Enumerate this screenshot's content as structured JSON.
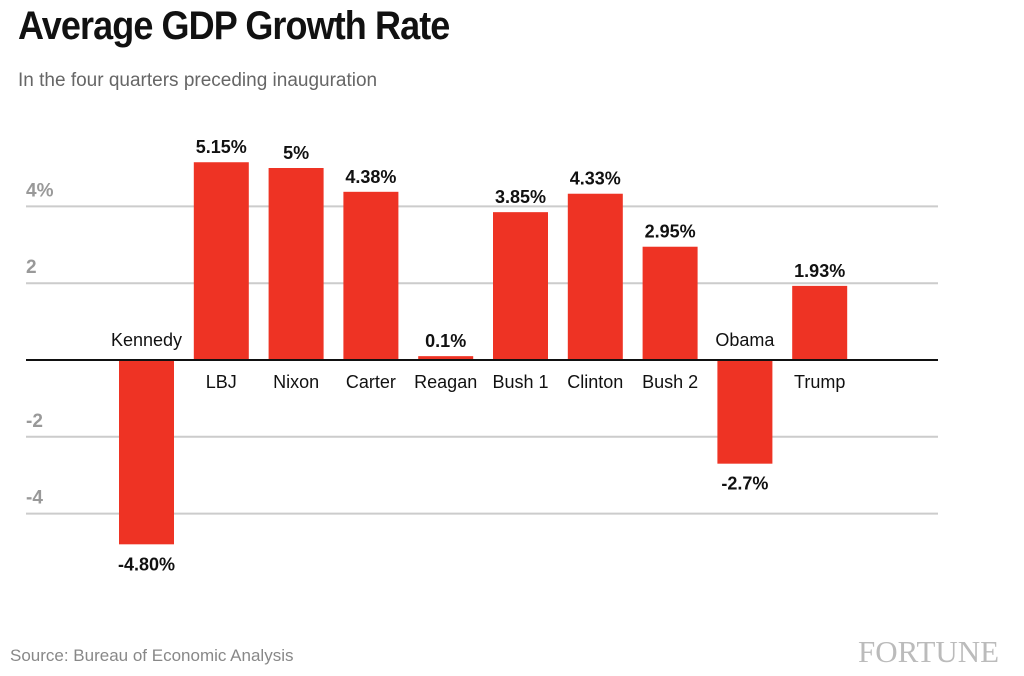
{
  "chart_data": {
    "type": "bar",
    "title": "Average GDP Growth Rate",
    "subtitle": "In the four quarters preceding inauguration",
    "categories": [
      "Kennedy",
      "LBJ",
      "Nixon",
      "Carter",
      "Reagan",
      "Bush 1",
      "Clinton",
      "Bush 2",
      "Obama",
      "Trump"
    ],
    "values": [
      -4.8,
      5.15,
      5,
      4.38,
      0.1,
      3.85,
      4.33,
      2.95,
      -2.7,
      1.93
    ],
    "data_labels": [
      "-4.80%",
      "5.15%",
      "5%",
      "4.38%",
      "0.1%",
      "3.85%",
      "4.33%",
      "2.95%",
      "-2.7%",
      "1.93%"
    ],
    "yticks": [
      4,
      2,
      -2,
      -4
    ],
    "ytick_labels": [
      "4%",
      "2",
      "-2",
      "-4"
    ],
    "ylim": [
      -6,
      6
    ],
    "grid": true,
    "bar_color": "#ee3324",
    "source": "Source: Bureau of Economic Analysis",
    "logo": "FORTUNE"
  }
}
